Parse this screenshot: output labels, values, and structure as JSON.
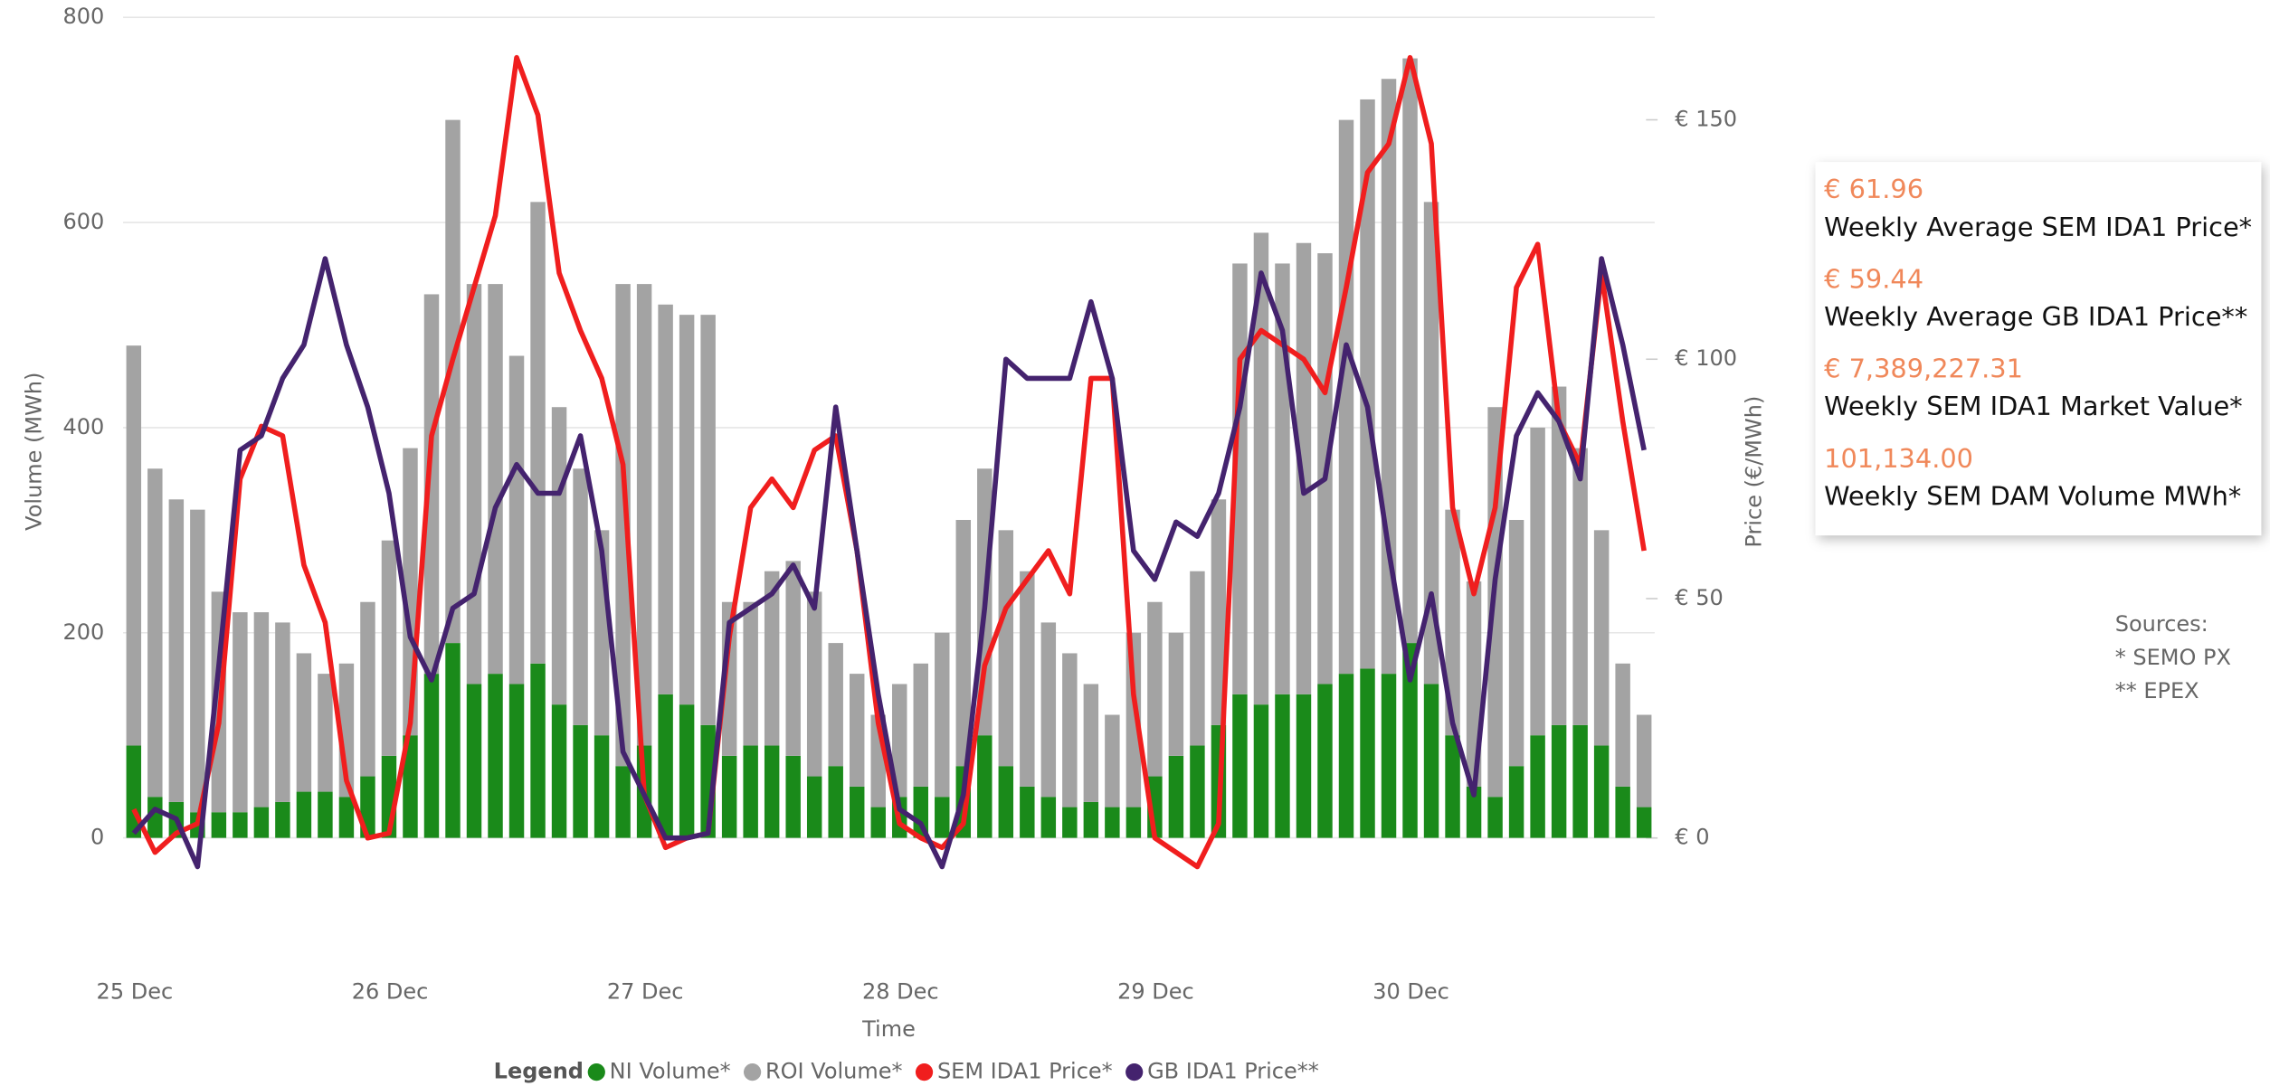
{
  "chart_data": {
    "type": "bar_line",
    "x_label": "Time",
    "y_label": "Volume (MWh)",
    "y2_label": "Price (€/MWh)",
    "legend_title": "Legend",
    "categories": [
      "25 Dec",
      null,
      null,
      null,
      null,
      null,
      null,
      null,
      null,
      null,
      null,
      null,
      "26 Dec",
      null,
      null,
      null,
      null,
      null,
      null,
      null,
      null,
      null,
      null,
      null,
      "27 Dec",
      null,
      null,
      null,
      null,
      null,
      null,
      null,
      null,
      null,
      null,
      null,
      "28 Dec",
      null,
      null,
      null,
      null,
      null,
      null,
      null,
      null,
      null,
      null,
      null,
      "29 Dec",
      null,
      null,
      null,
      null,
      null,
      null,
      null,
      null,
      null,
      null,
      null,
      "30 Dec",
      null,
      null,
      null,
      null,
      null,
      null,
      null,
      null,
      null,
      null,
      null
    ],
    "series": [
      {
        "name": "NI Volume*",
        "kind": "bar",
        "color": "#1a8a1a",
        "values": [
          90,
          40,
          35,
          25,
          25,
          25,
          30,
          35,
          45,
          45,
          40,
          60,
          80,
          100,
          160,
          190,
          150,
          160,
          150,
          170,
          130,
          110,
          100,
          70,
          90,
          140,
          130,
          110,
          80,
          90,
          90,
          80,
          60,
          70,
          50,
          30,
          40,
          50,
          40,
          70,
          100,
          70,
          50,
          40,
          30,
          35,
          30,
          30,
          60,
          80,
          90,
          110,
          140,
          130,
          140,
          140,
          150,
          160,
          165,
          160,
          190,
          150,
          100,
          50,
          40,
          70,
          100,
          110,
          110,
          90,
          50,
          30
        ]
      },
      {
        "name": "ROI Volume*",
        "kind": "bar",
        "color": "#a3a3a3",
        "values": [
          390,
          320,
          295,
          295,
          215,
          195,
          190,
          175,
          135,
          115,
          130,
          170,
          210,
          280,
          370,
          510,
          390,
          380,
          320,
          450,
          290,
          250,
          200,
          470,
          450,
          380,
          380,
          400,
          150,
          140,
          170,
          190,
          180,
          120,
          110,
          90,
          110,
          120,
          160,
          240,
          260,
          230,
          210,
          170,
          150,
          115,
          90,
          170,
          170,
          120,
          170,
          220,
          420,
          460,
          420,
          440,
          420,
          540,
          555,
          580,
          570,
          470,
          220,
          200,
          380,
          240,
          300,
          330,
          270,
          210,
          120,
          90
        ]
      },
      {
        "name": "SEM IDA1 Price*",
        "kind": "line",
        "axis": "y2",
        "color": "#f01e1e",
        "values": [
          6,
          -3,
          1,
          3,
          24,
          75,
          86,
          84,
          57,
          45,
          12,
          0,
          1,
          24,
          84,
          100,
          115,
          130,
          163,
          151,
          118,
          106,
          96,
          78,
          9,
          -2,
          0,
          1,
          42,
          69,
          75,
          69,
          81,
          84,
          60,
          24,
          3,
          0,
          -2,
          3,
          36,
          48,
          54,
          60,
          51,
          96,
          96,
          30,
          0,
          -3,
          -6,
          3,
          100,
          106,
          103,
          100,
          93,
          115,
          139,
          145,
          163,
          145,
          69,
          51,
          69,
          115,
          124,
          87,
          78,
          118,
          87,
          60
        ]
      },
      {
        "name": "GB IDA1 Price**",
        "kind": "line",
        "axis": "y2",
        "color": "#44236e",
        "values": [
          1,
          6,
          4,
          -6,
          36,
          81,
          84,
          96,
          103,
          121,
          103,
          90,
          72,
          42,
          33,
          48,
          51,
          69,
          78,
          72,
          72,
          84,
          60,
          18,
          9,
          0,
          0,
          1,
          45,
          48,
          51,
          57,
          48,
          90,
          60,
          30,
          6,
          3,
          -6,
          9,
          48,
          100,
          96,
          96,
          96,
          112,
          96,
          60,
          54,
          66,
          63,
          72,
          90,
          118,
          106,
          72,
          75,
          103,
          90,
          60,
          33,
          51,
          24,
          9,
          54,
          84,
          93,
          87,
          75,
          121,
          103,
          81
        ]
      }
    ],
    "ylim": [
      -100,
      800
    ],
    "yticks": [
      0,
      200,
      400,
      600,
      800
    ],
    "y2lim": [
      -21.4,
      171.4
    ],
    "y2ticks": [
      {
        "value": 0,
        "label": "€ 0"
      },
      {
        "value": 50,
        "label": "€ 50"
      },
      {
        "value": 100,
        "label": "€ 100"
      },
      {
        "value": 150,
        "label": "€ 150"
      }
    ],
    "grid": true,
    "legend": "bottom"
  },
  "kpis": [
    {
      "value": "€ 61.96",
      "label": "Weekly Average SEM IDA1 Price*"
    },
    {
      "value": "€ 59.44",
      "label": "Weekly Average GB IDA1 Price**"
    },
    {
      "value": "€ 7,389,227.31",
      "label": "Weekly SEM IDA1 Market Value*"
    },
    {
      "value": "101,134.00",
      "label": "Weekly SEM DAM Volume MWh*"
    }
  ],
  "sources": [
    "Sources:",
    "* SEMO PX",
    "** EPEX"
  ]
}
